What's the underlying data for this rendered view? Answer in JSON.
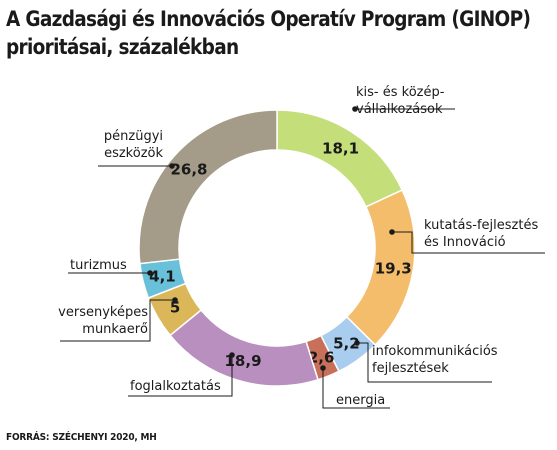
{
  "chart_data": {
    "type": "pie",
    "title_lines": [
      "A Gazdasági és Innovációs Operatív Program (GINOP)",
      "prioritásai, százalékban"
    ],
    "slices": [
      {
        "label": "kis- és közép-\nvállalkozások",
        "value": 18.1,
        "display": "18,1",
        "color": "#c4de7a"
      },
      {
        "label": "kutatás-fejlesztés\nés Innováció",
        "value": 19.3,
        "display": "19,3",
        "color": "#f3bd6c"
      },
      {
        "label": "infokommunikációs\nfejlesztések",
        "value": 5.2,
        "display": "5,2",
        "color": "#a9cdee"
      },
      {
        "label": "energia",
        "value": 2.6,
        "display": "2,6",
        "color": "#c8705a"
      },
      {
        "label": "foglalkoztatás",
        "value": 18.9,
        "display": "18,9",
        "color": "#b98fc0"
      },
      {
        "label": "versenyképes\nmunkaerő",
        "value": 5,
        "display": "5",
        "color": "#dbb75a"
      },
      {
        "label": "turizmus",
        "value": 4.1,
        "display": "4,1",
        "color": "#69c0d9"
      },
      {
        "label": "pénzügyi\neszközök",
        "value": 26.8,
        "display": "26,8",
        "color": "#a49c89"
      }
    ],
    "source": "FORRÁS: SZÉCHENYI 2020, MH"
  }
}
